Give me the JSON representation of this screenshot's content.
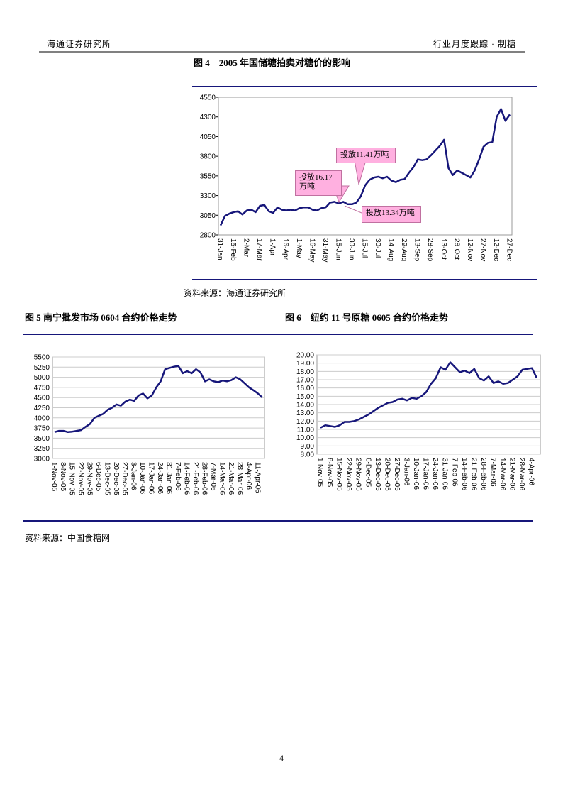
{
  "header": {
    "left": "海通证券研究所",
    "right": "行业月度跟踪 · 制糖"
  },
  "chart_data": [
    {
      "type": "line",
      "title": "图 4　2005 年国储糖拍卖对糖价的影响",
      "categories": [
        "31-Jan",
        null,
        null,
        "15-Feb",
        null,
        null,
        "2-Mar",
        null,
        null,
        "17-Mar",
        null,
        null,
        "1-Apr",
        null,
        null,
        "16-Apr",
        null,
        null,
        "1-May",
        null,
        null,
        "16-May",
        null,
        null,
        "31-May",
        null,
        null,
        "15-Jun",
        null,
        null,
        "30-Jun",
        null,
        null,
        "15-Jul",
        null,
        null,
        "30-Jul",
        null,
        null,
        "14-Aug",
        null,
        null,
        "29-Aug",
        null,
        null,
        "13-Sep",
        null,
        null,
        "28-Sep",
        null,
        null,
        "13-Oct",
        null,
        null,
        "28-Oct",
        null,
        null,
        "12-Nov",
        null,
        null,
        "27-Nov",
        null,
        null,
        "12-Dec",
        null,
        null,
        "27-Dec"
      ],
      "series": [
        {
          "color": "#16167a",
          "values": [
            2920,
            3040,
            3070,
            3090,
            3100,
            3060,
            3110,
            3120,
            3090,
            3170,
            3180,
            3100,
            3080,
            3150,
            3120,
            3110,
            3120,
            3110,
            3140,
            3150,
            3150,
            3120,
            3110,
            3140,
            3150,
            3210,
            3220,
            3200,
            3220,
            3190,
            3190,
            3210,
            3290,
            3430,
            3500,
            3530,
            3540,
            3520,
            3540,
            3490,
            3470,
            3500,
            3510,
            3590,
            3660,
            3760,
            3750,
            3760,
            3810,
            3870,
            3930,
            4010,
            3650,
            3560,
            3620,
            3590,
            3560,
            3530,
            3620,
            3760,
            3920,
            3970,
            3980,
            4300,
            4400,
            4250,
            4330
          ]
        }
      ],
      "ylim": [
        2800,
        4550
      ],
      "yticks": [
        2800,
        3050,
        3300,
        3550,
        3800,
        4050,
        4300,
        4550
      ],
      "grid": false,
      "annotations": [
        "投放16.17万吨",
        "投放11.41万吨",
        "投放13.34万吨"
      ]
    },
    {
      "type": "line",
      "title": "图 5  南宁批发市场 0604 合约价格走势",
      "categories": [
        "1-Nov-05",
        null,
        "8-Nov-05",
        null,
        "15-Nov-05",
        null,
        "22-Nov-05",
        null,
        "29-Nov-05",
        null,
        "6-Dec-05",
        null,
        "13-Dec-05",
        null,
        "20-Dec-05",
        null,
        "27-Dec-05",
        null,
        "3-Jan-06",
        null,
        "10-Jan-06",
        null,
        "17-Jan-06",
        null,
        "24-Jan-06",
        null,
        "31-Jan-06",
        null,
        "7-Feb-06",
        null,
        "14-Feb-06",
        null,
        "21-Feb-06",
        null,
        "28-Feb-06",
        null,
        "7-Mar-06",
        null,
        "14-Mar-06",
        null,
        "21-Mar-06",
        null,
        "28-Mar-06",
        null,
        "4-Apr-06",
        null,
        "11-Apr-06",
        null
      ],
      "series": [
        {
          "color": "#16167a",
          "values": [
            3650,
            3680,
            3680,
            3650,
            3660,
            3680,
            3700,
            3780,
            3850,
            4000,
            4050,
            4100,
            4200,
            4250,
            4330,
            4300,
            4400,
            4450,
            4420,
            4550,
            4600,
            4480,
            4550,
            4750,
            4900,
            5200,
            5230,
            5260,
            5280,
            5100,
            5150,
            5100,
            5200,
            5120,
            4900,
            4950,
            4900,
            4880,
            4920,
            4900,
            4930,
            5000,
            4950,
            4850,
            4750,
            4680,
            4600,
            4500
          ]
        }
      ],
      "ylim": [
        3000,
        5500
      ],
      "yticks": [
        3000,
        3250,
        3500,
        3750,
        4000,
        4250,
        4500,
        4750,
        5000,
        5250,
        5500
      ],
      "grid": true
    },
    {
      "type": "line",
      "title": "图 6　纽约 11 号原糖 0605 合约价格走势",
      "categories": [
        "1-Nov-05",
        null,
        "8-Nov-05",
        null,
        "15-Nov-05",
        null,
        "22-Nov-05",
        null,
        "29-Nov-05",
        null,
        "6-Dec-05",
        null,
        "13-Dec-05",
        null,
        "20-Dec-05",
        null,
        "27-Dec-05",
        null,
        "3-Jan-06",
        null,
        "10-Jan-06",
        null,
        "17-Jan-06",
        null,
        "24-Jan-06",
        null,
        "31-Jan-06",
        null,
        "7-Feb-06",
        null,
        "14-Feb-06",
        null,
        "21-Feb-06",
        null,
        "28-Feb-06",
        null,
        "7-Mar-06",
        null,
        "14-Mar-06",
        null,
        "21-Mar-06",
        null,
        "28-Mar-06",
        null,
        "4-Apr-06",
        null
      ],
      "series": [
        {
          "color": "#16167a",
          "values": [
            11.2,
            11.5,
            11.4,
            11.3,
            11.5,
            11.9,
            11.9,
            12.0,
            12.2,
            12.5,
            12.8,
            13.2,
            13.6,
            13.9,
            14.2,
            14.3,
            14.6,
            14.7,
            14.5,
            14.8,
            14.7,
            15.0,
            15.5,
            16.5,
            17.2,
            18.5,
            18.2,
            19.1,
            18.5,
            17.9,
            18.1,
            17.8,
            18.3,
            17.2,
            16.9,
            17.4,
            16.6,
            16.8,
            16.5,
            16.6,
            17.0,
            17.4,
            18.2,
            18.3,
            18.4,
            17.2
          ]
        }
      ],
      "ylim": [
        8,
        20
      ],
      "yticks": [
        {
          "value": 8,
          "label": "8.00"
        },
        {
          "value": 9,
          "label": "9.00"
        },
        {
          "value": 10,
          "label": "10.00"
        },
        {
          "value": 11,
          "label": "11.00"
        },
        {
          "value": 12,
          "label": "12.00"
        },
        {
          "value": 13,
          "label": "13.00"
        },
        {
          "value": 14,
          "label": "14.00"
        },
        {
          "value": 15,
          "label": "15.00"
        },
        {
          "value": 16,
          "label": "16.00"
        },
        {
          "value": 17,
          "label": "17.00"
        },
        {
          "value": 18,
          "label": "18.00"
        },
        {
          "value": 19,
          "label": "19.00"
        },
        {
          "value": 20,
          "label": "20.00"
        }
      ],
      "grid": true
    }
  ],
  "sources": [
    "资料来源：海通证券研究所",
    "资料来源：中国食糖网"
  ],
  "page_number": "4"
}
